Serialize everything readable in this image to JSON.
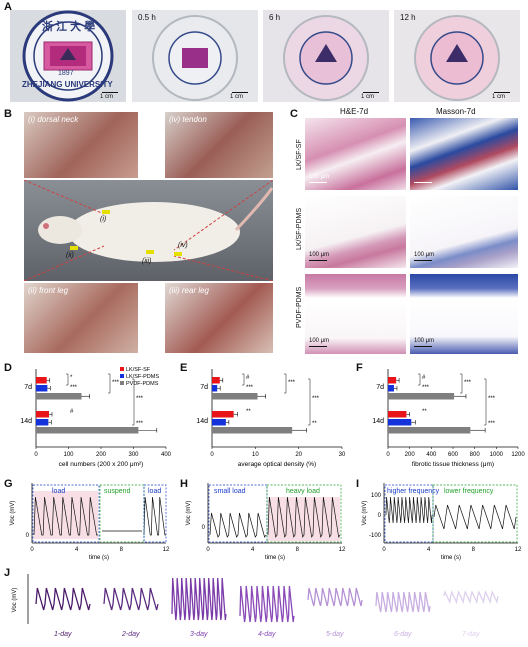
{
  "panels": {
    "A": "A",
    "B": "B",
    "C": "C",
    "D": "D",
    "E": "E",
    "F": "F",
    "G": "G",
    "H": "H",
    "I": "I",
    "J": "J"
  },
  "panelA": {
    "logo_text_top": "浙 江 大 學",
    "logo_year": "1897",
    "logo_text_bottom": "ZHEJIANG UNIVERSITY",
    "time_labels": [
      "0.5 h",
      "6 h",
      "12 h"
    ],
    "scale": "1 cm"
  },
  "panelB": {
    "labels": [
      "(i) dorsal neck",
      "(iv) tendon",
      "(ii) front leg",
      "(iii) rear leg"
    ],
    "markers": [
      "(i)",
      "(ii)",
      "(iii)",
      "(iv)"
    ]
  },
  "panelC": {
    "columns": [
      "H&E-7d",
      "Masson-7d"
    ],
    "rows": [
      "LK/SF-SF",
      "LK/SF-PDMS",
      "PVDF-PDMS"
    ],
    "scale": "100 μm"
  },
  "bar_charts": {
    "legend": [
      "LK/SF-SF",
      "LK/SF-PDMS",
      "PVDF-PDMS"
    ],
    "colors": [
      "#e8141a",
      "#1432dc",
      "#7f7f7f"
    ],
    "row_labels": [
      "7d",
      "14d"
    ],
    "sig": {
      "D": [
        "*",
        "***",
        "***",
        "***",
        "#",
        "***"
      ],
      "E": [
        "#",
        "***",
        "***",
        "***",
        "**",
        "**"
      ],
      "F": [
        "#",
        "***",
        "***",
        "***",
        "**",
        "***"
      ]
    }
  },
  "chart_data": [
    {
      "type": "bar",
      "title": "",
      "xlabel": "cell numbers (200 x 200 μm²)",
      "xlim": [
        0,
        400
      ],
      "ticks": [
        0,
        100,
        200,
        300,
        400
      ],
      "categories": [
        "7d",
        "14d"
      ],
      "series": [
        {
          "name": "LK/SF-SF",
          "values": [
            33,
            40
          ]
        },
        {
          "name": "LK/SF-PDMS",
          "values": [
            35,
            38
          ]
        },
        {
          "name": "PVDF-PDMS",
          "values": [
            140,
            315
          ]
        }
      ]
    },
    {
      "type": "bar",
      "title": "",
      "xlabel": "average optical density (%)",
      "xlim": [
        0,
        30
      ],
      "ticks": [
        0,
        10,
        20,
        30
      ],
      "categories": [
        "7d",
        "14d"
      ],
      "series": [
        {
          "name": "LK/SF-SF",
          "values": [
            1.8,
            5.0
          ]
        },
        {
          "name": "LK/SF-PDMS",
          "values": [
            1.2,
            3.2
          ]
        },
        {
          "name": "PVDF-PDMS",
          "values": [
            10.5,
            18.5
          ]
        }
      ]
    },
    {
      "type": "bar",
      "title": "",
      "xlabel": "fibrotic tissue thickness (μm)",
      "xlim": [
        0,
        1200
      ],
      "ticks": [
        0,
        200,
        400,
        600,
        800,
        1000,
        1200
      ],
      "categories": [
        "7d",
        "14d"
      ],
      "series": [
        {
          "name": "LK/SF-SF",
          "values": [
            75,
            170
          ]
        },
        {
          "name": "LK/SF-PDMS",
          "values": [
            55,
            215
          ]
        },
        {
          "name": "PVDF-PDMS",
          "values": [
            610,
            760
          ]
        }
      ]
    },
    {
      "type": "line",
      "title": "",
      "xlabel": "time (s)",
      "ylabel": "Voc (mV)",
      "xticks": [
        0,
        4,
        8,
        12
      ],
      "yticks": [
        0
      ],
      "segments": [
        "load",
        "suspend",
        "load"
      ]
    },
    {
      "type": "line",
      "title": "",
      "xlabel": "time (s)",
      "ylabel": "Voc (mV)",
      "xticks": [
        0,
        4,
        8,
        12
      ],
      "yticks": [
        0
      ],
      "segments": [
        "small load",
        "heavy load"
      ]
    },
    {
      "type": "line",
      "title": "",
      "xlabel": "time (s)",
      "ylabel": "Voc (mV)",
      "xticks": [
        0,
        4,
        8,
        12
      ],
      "yticks": [
        -100,
        0,
        100
      ],
      "segments": [
        "higher frequency",
        "lower frequency"
      ]
    },
    {
      "type": "line",
      "title": "",
      "ylabel": "Voc (mV)",
      "categories": [
        "1-day",
        "2-day",
        "3-day",
        "4-day",
        "5-day",
        "6-day",
        "7-day"
      ]
    }
  ]
}
